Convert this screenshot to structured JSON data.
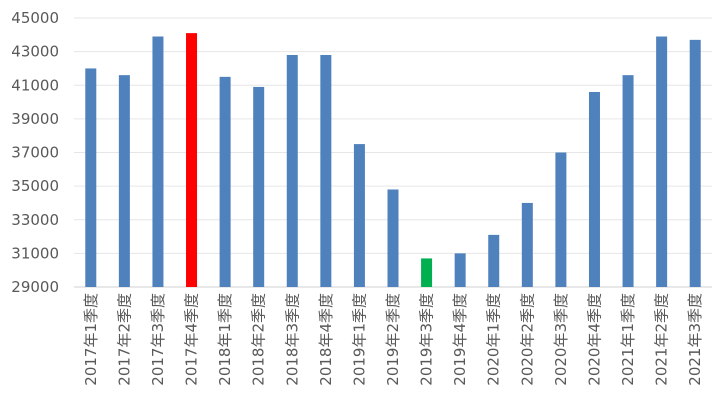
{
  "chart_data": {
    "type": "bar",
    "title": "",
    "xlabel": "",
    "ylabel": "",
    "ylim": [
      29000,
      45000
    ],
    "y_ticks": [
      29000,
      31000,
      33000,
      35000,
      37000,
      39000,
      41000,
      43000,
      45000
    ],
    "y_tick_labels": [
      "29000",
      "31000",
      "33000",
      "35000",
      "37000",
      "39000",
      "41000",
      "43000",
      "45000"
    ],
    "grid": true,
    "legend": "none",
    "categories": [
      "2017年1季度",
      "2017年2季度",
      "2017年3季度",
      "2017年4季度",
      "2018年1季度",
      "2018年2季度",
      "2018年3季度",
      "2018年4季度",
      "2019年1季度",
      "2019年2季度",
      "2019年3季度",
      "2019年4季度",
      "2020年1季度",
      "2020年2季度",
      "2020年3季度",
      "2020年4季度",
      "2021年1季度",
      "2021年2季度",
      "2021年3季度"
    ],
    "values": [
      42000,
      41600,
      43900,
      44100,
      41500,
      40900,
      42800,
      42800,
      37500,
      34800,
      30700,
      31000,
      32100,
      34000,
      37000,
      40600,
      41600,
      43900,
      43700
    ],
    "colors": {
      "default": "#4f81bd",
      "max": "#ff0000",
      "min": "#00b050"
    },
    "highlight": {
      "max_index": 3,
      "min_index": 10
    }
  }
}
